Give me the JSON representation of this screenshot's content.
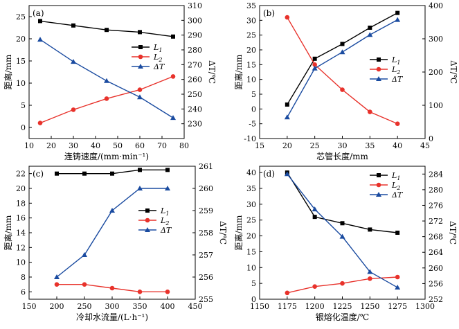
{
  "chart_data": [
    {
      "panel": "(a)",
      "type": "line",
      "xlabel": "连铸速度/(mm·min⁻¹)",
      "ylabel": "距离/mm",
      "y2label": "ΔT/℃",
      "xlim": [
        10,
        80
      ],
      "xticks": [
        10,
        20,
        30,
        40,
        50,
        60,
        70,
        80
      ],
      "ylim": [
        -2.5,
        27.5
      ],
      "yticks": [
        0,
        5,
        10,
        15,
        20,
        25
      ],
      "y2lim": [
        220,
        310
      ],
      "y2ticks": [
        230,
        240,
        250,
        260,
        270,
        280,
        290,
        300,
        310
      ],
      "legend_position": "middle-right",
      "series": [
        {
          "name": "L1",
          "label_main": "L",
          "label_sub": "1",
          "axis": "left",
          "color": "#000000",
          "marker": "square",
          "x": [
            15,
            30,
            45,
            60,
            75
          ],
          "y": [
            24,
            23,
            22,
            21.5,
            20.5
          ]
        },
        {
          "name": "L2",
          "label_main": "L",
          "label_sub": "2",
          "axis": "left",
          "color": "#e8322b",
          "marker": "circle",
          "x": [
            15,
            30,
            45,
            60,
            75
          ],
          "y": [
            1,
            4,
            6.5,
            8.5,
            11.5
          ]
        },
        {
          "name": "ΔT",
          "label_main": "ΔT",
          "label_sub": "",
          "axis": "right",
          "color": "#1a4ba0",
          "marker": "triangle",
          "x": [
            15,
            30,
            45,
            60,
            75
          ],
          "y": [
            287,
            272,
            259,
            248,
            234
          ]
        }
      ]
    },
    {
      "panel": "(b)",
      "type": "line",
      "xlabel": "芯管长度/mm",
      "ylabel": "距离/mm",
      "y2label": "ΔT/℃",
      "xlim": [
        15,
        45
      ],
      "xticks": [
        15,
        20,
        25,
        30,
        35,
        40,
        45
      ],
      "ylim": [
        -10,
        35
      ],
      "yticks": [
        -10,
        -5,
        0,
        5,
        10,
        15,
        20,
        25,
        30,
        35
      ],
      "y2lim": [
        0,
        400
      ],
      "y2ticks": [
        0,
        100,
        200,
        300,
        400
      ],
      "legend_position": "middle-right",
      "series": [
        {
          "name": "L1",
          "label_main": "L",
          "label_sub": "1",
          "axis": "left",
          "color": "#000000",
          "marker": "square",
          "x": [
            20,
            25,
            30,
            35,
            40
          ],
          "y": [
            1.5,
            17,
            22,
            27.5,
            32.5
          ]
        },
        {
          "name": "L2",
          "label_main": "L",
          "label_sub": "2",
          "axis": "left",
          "color": "#e8322b",
          "marker": "circle",
          "x": [
            20,
            25,
            30,
            35,
            40
          ],
          "y": [
            31,
            15,
            6.5,
            -1,
            -5
          ]
        },
        {
          "name": "ΔT",
          "label_main": "ΔT",
          "label_sub": "",
          "axis": "right",
          "color": "#1a4ba0",
          "marker": "triangle",
          "x": [
            20,
            25,
            30,
            35,
            40
          ],
          "y": [
            64,
            211,
            260,
            312,
            357
          ]
        }
      ]
    },
    {
      "panel": "(c)",
      "type": "line",
      "xlabel": "冷却水流量/(L·h⁻¹)",
      "ylabel": "距离/mm",
      "y2label": "ΔT/℃",
      "xlim": [
        150,
        450
      ],
      "xticks": [
        150,
        200,
        250,
        300,
        350,
        400,
        450
      ],
      "ylim": [
        5,
        23
      ],
      "yticks": [
        6,
        8,
        10,
        12,
        14,
        16,
        18,
        20,
        22
      ],
      "y2lim": [
        255,
        261
      ],
      "y2ticks": [
        255,
        256,
        257,
        258,
        259,
        260,
        261
      ],
      "legend_position": "middle-right",
      "series": [
        {
          "name": "L1",
          "label_main": "L",
          "label_sub": "1",
          "axis": "left",
          "color": "#000000",
          "marker": "square",
          "x": [
            200,
            250,
            300,
            350,
            400
          ],
          "y": [
            22,
            22,
            22,
            22.5,
            22.5
          ]
        },
        {
          "name": "L2",
          "label_main": "L",
          "label_sub": "2",
          "axis": "left",
          "color": "#e8322b",
          "marker": "circle",
          "x": [
            200,
            250,
            300,
            350,
            400
          ],
          "y": [
            7,
            7,
            6.5,
            6,
            6
          ]
        },
        {
          "name": "ΔT",
          "label_main": "ΔT",
          "label_sub": "",
          "axis": "right",
          "color": "#1a4ba0",
          "marker": "triangle",
          "x": [
            200,
            250,
            300,
            350,
            400
          ],
          "y": [
            256,
            257,
            259,
            260,
            260
          ]
        }
      ]
    },
    {
      "panel": "(d)",
      "type": "line",
      "xlabel": "银熔化温度/℃",
      "ylabel": "距离/mm",
      "y2label": "ΔT/℃",
      "xlim": [
        1150,
        1300
      ],
      "xticks": [
        1150,
        1175,
        1200,
        1225,
        1250,
        1275,
        1300
      ],
      "ylim": [
        0,
        42
      ],
      "yticks": [
        0,
        5,
        10,
        15,
        20,
        25,
        30,
        35,
        40
      ],
      "y2lim": [
        252,
        286
      ],
      "y2ticks": [
        252,
        256,
        260,
        264,
        268,
        272,
        276,
        280,
        284
      ],
      "legend_position": "top-right",
      "series": [
        {
          "name": "L1",
          "label_main": "L",
          "label_sub": "1",
          "axis": "left",
          "color": "#000000",
          "marker": "square",
          "x": [
            1175,
            1200,
            1225,
            1250,
            1275
          ],
          "y": [
            40,
            26,
            24,
            22,
            21
          ]
        },
        {
          "name": "L2",
          "label_main": "L",
          "label_sub": "2",
          "axis": "left",
          "color": "#e8322b",
          "marker": "circle",
          "x": [
            1175,
            1200,
            1225,
            1250,
            1275
          ],
          "y": [
            2,
            4,
            5,
            6.5,
            7
          ]
        },
        {
          "name": "ΔT",
          "label_main": "ΔT",
          "label_sub": "",
          "axis": "right",
          "color": "#1a4ba0",
          "marker": "triangle",
          "x": [
            1175,
            1200,
            1225,
            1250,
            1275
          ],
          "y": [
            284,
            275,
            268,
            259,
            255
          ]
        }
      ]
    }
  ]
}
